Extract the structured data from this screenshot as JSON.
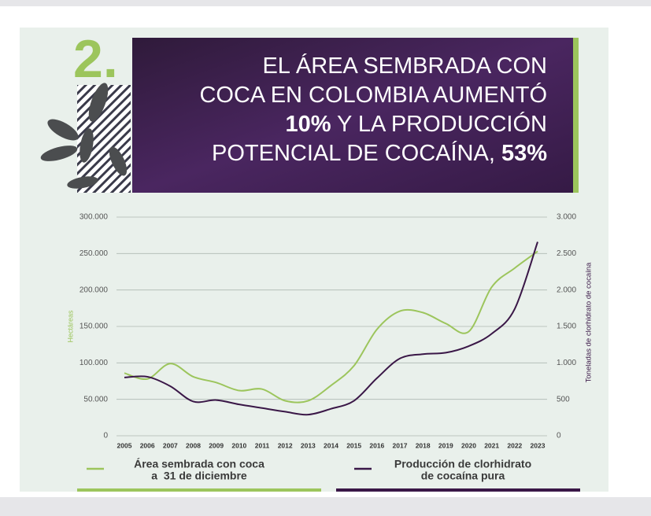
{
  "chart_data": {
    "type": "line",
    "number": "2.",
    "title_lines": [
      [
        {
          "text": "EL ÁREA SEMBRADA CON",
          "bold": false
        }
      ],
      [
        {
          "text": "COCA EN COLOMBIA AUMENTÓ",
          "bold": false
        }
      ],
      [
        {
          "text": "10%",
          "bold": true
        },
        {
          "text": " Y LA PRODUCCIÓN",
          "bold": false
        }
      ],
      [
        {
          "text": "POTENCIAL DE COCAÍNA, ",
          "bold": false
        },
        {
          "text": "53%",
          "bold": true
        }
      ]
    ],
    "ylabel": "Hectáreas",
    "y2label": "Toneladas de clorhidrato de cocaína",
    "categories": [
      "2005",
      "2006",
      "2007",
      "2008",
      "2009",
      "2010",
      "2011",
      "2012",
      "2013",
      "2014",
      "2015",
      "2016",
      "2017",
      "2018",
      "2019",
      "2020",
      "2021",
      "2022",
      "2023"
    ],
    "ylim": [
      0,
      300000
    ],
    "yticks": [
      0,
      {
        "value": 50000,
        "label": "50.000"
      },
      {
        "value": 100000,
        "label": "100.000"
      },
      {
        "value": 150000,
        "label": "150.000"
      },
      {
        "value": 200000,
        "label": "200.000"
      },
      {
        "value": 250000,
        "label": "250.000"
      },
      {
        "value": 300000,
        "label": "300.000"
      }
    ],
    "y2lim": [
      0,
      3000
    ],
    "y2ticks": [
      0,
      500,
      {
        "value": 1000,
        "label": "1.000"
      },
      {
        "value": 1500,
        "label": "1.500"
      },
      {
        "value": 2000,
        "label": "2.000"
      },
      {
        "value": 2500,
        "label": "2.500"
      },
      {
        "value": 3000,
        "label": "3.000"
      }
    ],
    "grid": true,
    "series": [
      {
        "name": [
          "Área sembrada con coca",
          "a  31 de diciembre"
        ],
        "color": "#9cc55c",
        "values": [
          86000,
          78000,
          99000,
          81000,
          73000,
          62000,
          64000,
          48000,
          48000,
          69000,
          96000,
          146000,
          171000,
          169000,
          154000,
          143000,
          204000,
          230000,
          253000
        ]
      },
      {
        "name": [
          "Producción de clorhidrato",
          "de cocaína pura"
        ],
        "color": "#3a1747",
        "axis": "y2",
        "values": [
          800,
          810,
          680,
          470,
          490,
          430,
          380,
          330,
          290,
          370,
          480,
          790,
          1060,
          1120,
          1140,
          1230,
          1400,
          1740,
          2660
        ]
      }
    ]
  }
}
